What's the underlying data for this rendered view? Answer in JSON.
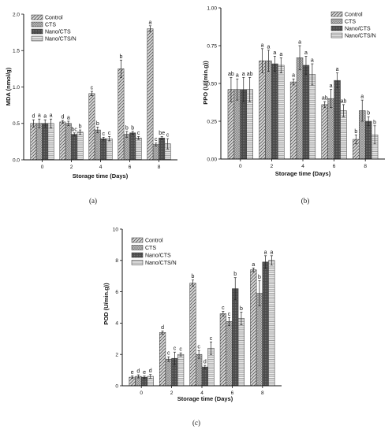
{
  "chart_data": [
    {
      "type": "bar",
      "panel_label": "(a)",
      "xlabel": "Storage time (Days)",
      "ylabel": "MDA (nmol/g)",
      "categories": [
        "0",
        "2",
        "4",
        "6",
        "8"
      ],
      "ylim": [
        0,
        2.0
      ],
      "yticks": [
        0.0,
        0.5,
        1.0,
        1.5,
        2.0
      ],
      "ytick_labels": [
        "0.0",
        "0.5",
        "1.0",
        "1.5",
        "2.0"
      ],
      "legend_position": "top-left",
      "series": [
        {
          "name": "Control",
          "values": [
            0.5,
            0.52,
            0.91,
            1.25,
            1.8
          ],
          "errors": [
            0.05,
            0.02,
            0.03,
            0.12,
            0.04
          ],
          "letters": [
            "d",
            "d",
            "c",
            "b",
            "a"
          ]
        },
        {
          "name": "CTS",
          "values": [
            0.5,
            0.5,
            0.41,
            0.35,
            0.21
          ],
          "errors": [
            0.06,
            0.03,
            0.04,
            0.04,
            0.02
          ],
          "letters": [
            "a",
            "a",
            "b",
            "b",
            "c"
          ]
        },
        {
          "name": "Nano/CTS",
          "values": [
            0.5,
            0.35,
            0.29,
            0.37,
            0.3
          ],
          "errors": [
            0.05,
            0.02,
            0.02,
            0.02,
            0.02
          ],
          "letters": [
            "a",
            "bc",
            "c",
            "b",
            "be"
          ]
        },
        {
          "name": "Nano/CTS/N",
          "values": [
            0.5,
            0.38,
            0.29,
            0.3,
            0.22
          ],
          "errors": [
            0.06,
            0.03,
            0.03,
            0.02,
            0.07
          ],
          "letters": [
            "a",
            "b",
            "c",
            "c",
            "c"
          ]
        }
      ]
    },
    {
      "type": "bar",
      "panel_label": "(b)",
      "xlabel": "Storage time (Days)",
      "ylabel": "PPO (U/(min.g))",
      "categories": [
        "0",
        "2",
        "4",
        "6",
        "8"
      ],
      "ylim": [
        0,
        1.0
      ],
      "yticks": [
        0.0,
        0.25,
        0.5,
        0.75,
        1.0
      ],
      "ytick_labels": [
        "0.00",
        "0.25",
        "0.50",
        "0.75",
        "1.00"
      ],
      "legend_position": "top-right",
      "series": [
        {
          "name": "Control",
          "values": [
            0.46,
            0.65,
            0.51,
            0.36,
            0.13
          ],
          "errors": [
            0.08,
            0.08,
            0.02,
            0.02,
            0.03
          ],
          "letters": [
            "ab",
            "a",
            "a",
            "ab",
            "b"
          ]
        },
        {
          "name": "CTS",
          "values": [
            0.46,
            0.65,
            0.67,
            0.4,
            0.32
          ],
          "errors": [
            0.07,
            0.07,
            0.08,
            0.06,
            0.07
          ],
          "letters": [
            "a",
            "a",
            "a",
            "a",
            "a"
          ]
        },
        {
          "name": "Nano/CTS",
          "values": [
            0.46,
            0.63,
            0.62,
            0.52,
            0.25
          ],
          "errors": [
            0.08,
            0.05,
            0.06,
            0.05,
            0.03
          ],
          "letters": [
            "a",
            "a",
            "a",
            "a",
            "b"
          ]
        },
        {
          "name": "Nano/CTS/N",
          "values": [
            0.46,
            0.62,
            0.56,
            0.32,
            0.16
          ],
          "errors": [
            0.08,
            0.05,
            0.07,
            0.04,
            0.06
          ],
          "letters": [
            "ab",
            "a",
            "a",
            "ab",
            "b"
          ]
        }
      ]
    },
    {
      "type": "bar",
      "panel_label": "(c)",
      "xlabel": "Storage time (Days)",
      "ylabel": "POD (U/min.g))",
      "categories": [
        "0",
        "2",
        "4",
        "6",
        "8"
      ],
      "ylim": [
        0,
        10
      ],
      "yticks": [
        0,
        2,
        4,
        6,
        8,
        10
      ],
      "ytick_labels": [
        "0",
        "2",
        "4",
        "6",
        "8",
        "10"
      ],
      "legend_position": "top-left",
      "series": [
        {
          "name": "Control",
          "values": [
            0.55,
            3.4,
            6.55,
            4.6,
            7.4
          ],
          "errors": [
            0.08,
            0.1,
            0.2,
            0.15,
            0.12
          ],
          "letters": [
            "e",
            "d",
            "b",
            "c",
            "a"
          ]
        },
        {
          "name": "CTS",
          "values": [
            0.6,
            1.7,
            2.0,
            4.1,
            5.9
          ],
          "errors": [
            0.1,
            0.15,
            0.25,
            0.25,
            0.8
          ],
          "letters": [
            "d",
            "c",
            "c",
            "c",
            "b"
          ]
        },
        {
          "name": "Nano/CTS",
          "values": [
            0.55,
            1.75,
            1.2,
            6.2,
            7.9
          ],
          "errors": [
            0.07,
            0.4,
            0.1,
            0.7,
            0.4
          ],
          "letters": [
            "e",
            "c",
            "d",
            "b",
            "a"
          ]
        },
        {
          "name": "Nano/CTS/N",
          "values": [
            0.6,
            2.0,
            2.4,
            4.3,
            8.0
          ],
          "errors": [
            0.12,
            0.1,
            0.4,
            0.4,
            0.3
          ],
          "letters": [
            "d",
            "c",
            "c",
            "b",
            "a"
          ]
        }
      ]
    }
  ]
}
